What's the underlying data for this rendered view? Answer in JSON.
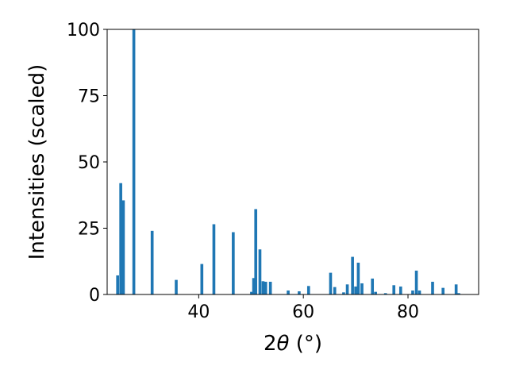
{
  "chart_data": {
    "type": "bar",
    "xlabel_prefix": "2",
    "xlabel_symbol": "θ",
    "xlabel_unit": " (°)",
    "ylabel": "Intensities (scaled)",
    "xlim": [
      22.5,
      93.5
    ],
    "ylim": [
      0,
      100
    ],
    "xticks": [
      40,
      60,
      80
    ],
    "yticks": [
      0,
      25,
      50,
      75,
      100
    ],
    "grid": false,
    "bar_color": "#1f77b4",
    "bars": [
      {
        "x": 24.5,
        "y": 7.2
      },
      {
        "x": 25.1,
        "y": 42.0
      },
      {
        "x": 25.6,
        "y": 35.5
      },
      {
        "x": 27.6,
        "y": 100.0
      },
      {
        "x": 31.1,
        "y": 24.0
      },
      {
        "x": 35.7,
        "y": 5.5
      },
      {
        "x": 40.6,
        "y": 11.5
      },
      {
        "x": 42.9,
        "y": 26.5
      },
      {
        "x": 46.6,
        "y": 23.5
      },
      {
        "x": 50.1,
        "y": 1.0
      },
      {
        "x": 50.5,
        "y": 6.2
      },
      {
        "x": 50.9,
        "y": 32.2
      },
      {
        "x": 51.7,
        "y": 17.0
      },
      {
        "x": 52.3,
        "y": 5.0
      },
      {
        "x": 52.8,
        "y": 4.8
      },
      {
        "x": 53.7,
        "y": 4.8
      },
      {
        "x": 57.1,
        "y": 1.5
      },
      {
        "x": 59.2,
        "y": 1.2
      },
      {
        "x": 61.0,
        "y": 3.2
      },
      {
        "x": 65.2,
        "y": 8.2
      },
      {
        "x": 66.0,
        "y": 2.8
      },
      {
        "x": 67.7,
        "y": 0.8
      },
      {
        "x": 68.4,
        "y": 3.8
      },
      {
        "x": 69.4,
        "y": 14.2
      },
      {
        "x": 70.0,
        "y": 3.0
      },
      {
        "x": 70.5,
        "y": 12.0
      },
      {
        "x": 71.2,
        "y": 4.2
      },
      {
        "x": 73.2,
        "y": 6.0
      },
      {
        "x": 73.8,
        "y": 1.0
      },
      {
        "x": 75.7,
        "y": 0.5
      },
      {
        "x": 77.3,
        "y": 3.5
      },
      {
        "x": 78.6,
        "y": 3.0
      },
      {
        "x": 80.9,
        "y": 1.5
      },
      {
        "x": 81.6,
        "y": 9.0
      },
      {
        "x": 82.2,
        "y": 1.5
      },
      {
        "x": 84.7,
        "y": 4.8
      },
      {
        "x": 86.7,
        "y": 2.5
      },
      {
        "x": 89.2,
        "y": 3.8
      },
      {
        "x": 89.7,
        "y": 0.5
      }
    ]
  }
}
